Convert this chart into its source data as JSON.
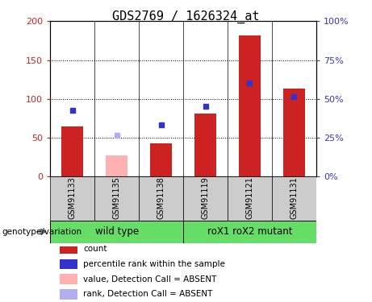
{
  "title": "GDS2769 / 1626324_at",
  "samples": [
    "GSM91133",
    "GSM91135",
    "GSM91138",
    "GSM91119",
    "GSM91121",
    "GSM91131"
  ],
  "bar_values": [
    65,
    27,
    43,
    81,
    182,
    113
  ],
  "bar_colors": [
    "#cc2222",
    "#ffb0b0",
    "#cc2222",
    "#cc2222",
    "#cc2222",
    "#cc2222"
  ],
  "rank_values_left_scale": [
    85,
    53,
    67,
    90,
    120,
    103
  ],
  "rank_colors": [
    "#3333cc",
    "#b0b0ee",
    "#3333cc",
    "#3333cc",
    "#3333cc",
    "#3333cc"
  ],
  "ylim_left": [
    0,
    200
  ],
  "ylim_right": [
    0,
    100
  ],
  "yticks_left": [
    0,
    50,
    100,
    150,
    200
  ],
  "yticks_right": [
    0,
    25,
    50,
    75,
    100
  ],
  "yticklabels_left": [
    "0",
    "50",
    "100",
    "150",
    "200"
  ],
  "yticklabels_right": [
    "0%",
    "25%",
    "50%",
    "75%",
    "100%"
  ],
  "hgrid_values": [
    50,
    100,
    150
  ],
  "groups": [
    {
      "label": "wild type",
      "start": 0,
      "end": 3,
      "color": "#66dd66"
    },
    {
      "label": "roX1 roX2 mutant",
      "start": 3,
      "end": 6,
      "color": "#66dd66"
    }
  ],
  "group_label": "genotype/variation",
  "legend_items": [
    {
      "label": "count",
      "color": "#cc2222"
    },
    {
      "label": "percentile rank within the sample",
      "color": "#3333cc"
    },
    {
      "label": "value, Detection Call = ABSENT",
      "color": "#ffb0b0"
    },
    {
      "label": "rank, Detection Call = ABSENT",
      "color": "#b0b0ee"
    }
  ],
  "bar_width": 0.5,
  "plot_bg": "#ffffff",
  "label_area_bg": "#cccccc",
  "title_fontsize": 11,
  "tick_fontsize": 8,
  "sample_fontsize": 7
}
